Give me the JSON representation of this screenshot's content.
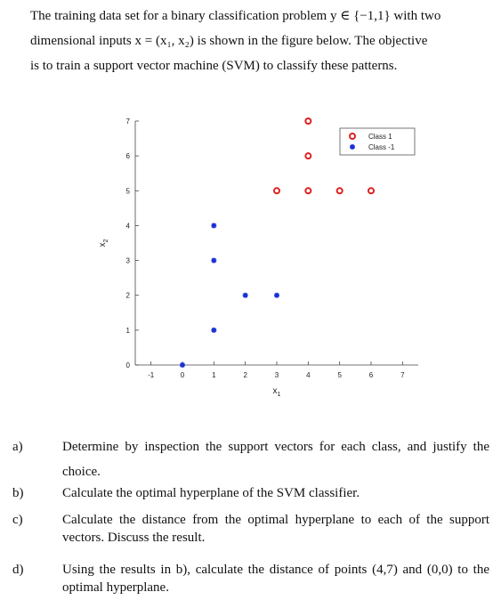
{
  "intro": {
    "line1": "The training data set for a binary classification problem y ∈ {−1,1} with two",
    "line2": "dimensional inputs x = (x₁, x₂) is shown in the figure below. The objective",
    "line3": "is to train a support vector machine (SVM) to classify these patterns."
  },
  "chart_data": {
    "type": "scatter",
    "title": "",
    "xlabel": "x1",
    "ylabel": "x2",
    "xlim": [
      -1.5,
      7.5
    ],
    "ylim": [
      0,
      7
    ],
    "xticks": [
      -1,
      0,
      1,
      2,
      3,
      4,
      5,
      6,
      7
    ],
    "yticks": [
      0,
      1,
      2,
      3,
      4,
      5,
      6,
      7
    ],
    "legend_position": "top-right",
    "series": [
      {
        "name": "Class 1",
        "marker": "circle",
        "color": "#e02020",
        "points": [
          [
            3,
            5
          ],
          [
            4,
            5
          ],
          [
            4,
            6
          ],
          [
            4,
            7
          ],
          [
            5,
            5
          ],
          [
            6,
            5
          ]
        ]
      },
      {
        "name": "Class -1",
        "marker": "star",
        "color": "#1a2fd6",
        "points": [
          [
            0,
            0
          ],
          [
            1,
            1
          ],
          [
            1,
            3
          ],
          [
            1,
            4
          ],
          [
            2,
            2
          ],
          [
            3,
            2
          ]
        ]
      }
    ]
  },
  "questions": [
    {
      "letter": "a)",
      "text": "Determine by inspection the support vectors for each class, and justify the choice."
    },
    {
      "letter": "b)",
      "text": "Calculate the optimal hyperplane of the SVM classifier."
    },
    {
      "letter": "c)",
      "text": "Calculate the distance from the optimal hyperplane to each of the support vectors. Discuss the result."
    },
    {
      "letter": "d)",
      "text": "Using the results in b), calculate the distance of points (4,7) and (0,0) to the optimal hyperplane."
    }
  ]
}
